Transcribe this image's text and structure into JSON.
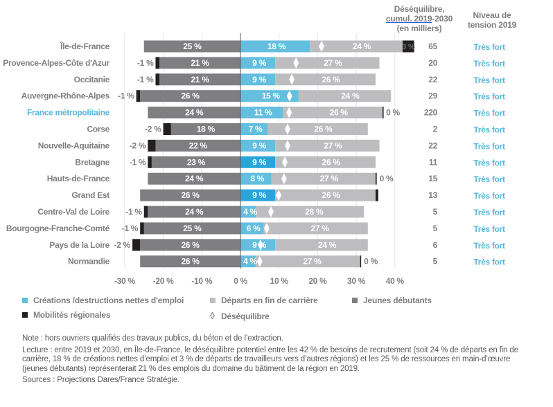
{
  "headers": {
    "deseq_line1": "Déséquilibre,",
    "deseq_line2_underlined": "cumul. 2019",
    "deseq_line2_rest": "-2030",
    "deseq_line3": "(en milliers)",
    "tension_line1": "Niveau de",
    "tension_line2": "tension 2019"
  },
  "colors": {
    "creations": "#63bedf",
    "creations_dark": "#2aa5dc",
    "departs": "#bdbdbf",
    "jeunes": "#7f7f82",
    "mobilites": "#231f20",
    "label_text": "#7f7f7f",
    "highlight_label": "#5ab8dc",
    "tension": "#5ab8dc",
    "grid": "#e6e6e6",
    "axis": "#595959"
  },
  "legend": {
    "creations": "Créations /destructions nettes d'emploi",
    "departs": "Départs en fin de carrière",
    "jeunes": "Jeunes débutants",
    "mobilites": "Mobilités régionales",
    "deseq": "Déséquilibre"
  },
  "notes": {
    "note": "Note : hors ouvriers qualifiés des travaux publics, du béton et de l’extraction.",
    "lecture": "Lecture : entre 2019 et 2030, en Île-de-France, le déséquilibre potentiel entre les 42 % de besoins de recrutement (soit 24 % de départs en fin de carrière, 18 % de créations nettes d’emploi et 3 % de départs de travailleurs vers d’autres régions) et les 25 % de ressources en main-d’œuvre (jeunes débutants) représenterait 21 % des emplois du domaine du bâtiment de la région en 2019.",
    "sources": "Sources : Projections Dares/France Stratégie."
  },
  "chart_data": {
    "type": "bar",
    "subtype": "diverging-stacked-horizontal",
    "xlim": [
      -30,
      45
    ],
    "xticks": [
      -30,
      -20,
      -10,
      0,
      10,
      20,
      30,
      40
    ],
    "xtick_labels": [
      "-30 %",
      "-20 %",
      "-10 %",
      "0 %",
      "10 %",
      "20 %",
      "30 %",
      "40 %"
    ],
    "grid": true,
    "legend_position": "bottom",
    "series_names": [
      "Créations /destructions nettes d'emploi",
      "Départs en fin de carrière",
      "Jeunes débutants",
      "Mobilités régionales",
      "Déséquilibre"
    ],
    "rows": [
      {
        "region": "Île-de-France",
        "highlight": false,
        "jeunes": 25,
        "mobilites_left": 0,
        "creations": 18,
        "creations_dark": false,
        "departs": 24,
        "mobilites_right": 3,
        "deseq_pct": 21,
        "left_label": "",
        "right_label": "",
        "mob_inside_label": "3 %",
        "deseq_k": "65",
        "tension": "Très fort"
      },
      {
        "region": "Provence-Alpes-Côte d'Azur",
        "highlight": false,
        "jeunes": 21,
        "mobilites_left": 1,
        "creations": 9,
        "creations_dark": false,
        "departs": 27,
        "mobilites_right": 0,
        "deseq_pct": 14.4,
        "left_label": "-1 %",
        "right_label": "",
        "mob_inside_label": "",
        "deseq_k": "20",
        "tension": "Très fort"
      },
      {
        "region": "Occitanie",
        "highlight": false,
        "jeunes": 21,
        "mobilites_left": 1,
        "creations": 9,
        "creations_dark": false,
        "departs": 26,
        "mobilites_right": 0,
        "deseq_pct": 13.3,
        "left_label": "-1 %",
        "right_label": "",
        "mob_inside_label": "",
        "deseq_k": "22",
        "tension": "Très fort"
      },
      {
        "region": "Auvergne-Rhône-Alpes",
        "highlight": false,
        "jeunes": 26,
        "mobilites_left": 1,
        "creations": 15,
        "creations_dark": false,
        "departs": 24,
        "mobilites_right": 0,
        "deseq_pct": 12.7,
        "left_label": "-1 %",
        "right_label": "",
        "mob_inside_label": "",
        "deseq_k": "29",
        "tension": "Très fort"
      },
      {
        "region": "France métropolitaine",
        "highlight": true,
        "jeunes": 24,
        "mobilites_left": 0,
        "creations": 11,
        "creations_dark": false,
        "departs": 26,
        "mobilites_right": 0,
        "deseq_pct": 12.6,
        "left_label": "",
        "right_label": "0 %",
        "mob_inside_label": "",
        "deseq_k": "220",
        "tension": "Très fort"
      },
      {
        "region": "Corse",
        "highlight": false,
        "jeunes": 18,
        "mobilites_left": 2,
        "creations": 7,
        "creations_dark": false,
        "departs": 26,
        "mobilites_right": 0,
        "deseq_pct": 12.2,
        "left_label": "-2 %",
        "right_label": "",
        "mob_inside_label": "",
        "deseq_k": "2",
        "tension": "Très fort"
      },
      {
        "region": "Nouvelle-Aquitaine",
        "highlight": false,
        "jeunes": 22,
        "mobilites_left": 2,
        "creations": 9,
        "creations_dark": false,
        "departs": 27,
        "mobilites_right": 0,
        "deseq_pct": 12.2,
        "left_label": "-2 %",
        "right_label": "",
        "mob_inside_label": "",
        "deseq_k": "22",
        "tension": "Très fort"
      },
      {
        "region": "Bretagne",
        "highlight": false,
        "jeunes": 23,
        "mobilites_left": 1,
        "creations": 9,
        "creations_dark": true,
        "departs": 26,
        "mobilites_right": 0,
        "deseq_pct": 11.5,
        "left_label": "-1 %",
        "right_label": "",
        "mob_inside_label": "",
        "deseq_k": "11",
        "tension": "Très fort"
      },
      {
        "region": "Hauts-de-France",
        "highlight": false,
        "jeunes": 24,
        "mobilites_left": 0,
        "creations": 8,
        "creations_dark": false,
        "departs": 27,
        "mobilites_right": 0.3,
        "deseq_pct": 11.3,
        "left_label": "",
        "right_label": "0 %",
        "mob_inside_label": "",
        "deseq_k": "15",
        "tension": "Très fort"
      },
      {
        "region": "Grand Est",
        "highlight": false,
        "jeunes": 26,
        "mobilites_left": 0,
        "creations": 9,
        "creations_dark": true,
        "departs": 26,
        "mobilites_right": 0.7,
        "deseq_pct": 9.9,
        "left_label": "",
        "right_label": "",
        "mob_inside_label": "",
        "deseq_k": "13",
        "tension": "Très fort"
      },
      {
        "region": "Centre-Val de Loire",
        "highlight": false,
        "jeunes": 24,
        "mobilites_left": 1,
        "creations": 4,
        "creations_dark": false,
        "departs": 28,
        "mobilites_right": 0,
        "deseq_pct": 7.9,
        "left_label": "-1 %",
        "right_label": "",
        "mob_inside_label": "",
        "deseq_k": "5",
        "tension": "Très fort"
      },
      {
        "region": "Bourgogne-Franche-Comté",
        "highlight": false,
        "jeunes": 25,
        "mobilites_left": 1,
        "creations": 6,
        "creations_dark": false,
        "departs": 27,
        "mobilites_right": 0,
        "deseq_pct": 6.8,
        "left_label": "-1 %",
        "right_label": "",
        "mob_inside_label": "",
        "deseq_k": "5",
        "tension": "Très fort"
      },
      {
        "region": "Pays de la Loire",
        "highlight": false,
        "jeunes": 26,
        "mobilites_left": 2,
        "creations": 9,
        "creations_dark": false,
        "departs": 24,
        "mobilites_right": 0,
        "deseq_pct": 5.2,
        "left_label": "-2 %",
        "right_label": "",
        "mob_inside_label": "",
        "deseq_k": "6",
        "tension": "Très fort"
      },
      {
        "region": "Normandie",
        "highlight": false,
        "jeunes": 26,
        "mobilites_left": 0,
        "creations": 4,
        "creations_dark": false,
        "departs": 27,
        "mobilites_right": 0.2,
        "deseq_pct": 5.0,
        "left_label": "",
        "right_label": "0 %",
        "mob_inside_label": "",
        "deseq_k": "5",
        "tension": "Très fort"
      }
    ]
  }
}
